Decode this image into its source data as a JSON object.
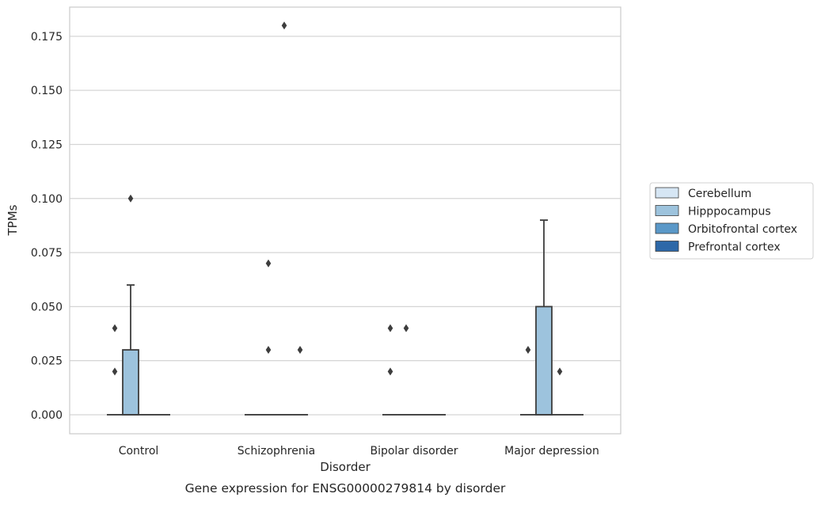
{
  "chart_data": {
    "type": "box",
    "title": "",
    "caption": "Gene expression for ENSG00000279814 by disorder",
    "xlabel": "Disorder",
    "ylabel": "TPMs",
    "ylim": [
      -0.0088,
      0.1885
    ],
    "y_ticks": [
      "0.000",
      "0.025",
      "0.050",
      "0.075",
      "0.100",
      "0.125",
      "0.150",
      "0.175"
    ],
    "grid": "horizontal",
    "legend_position": "right",
    "categories": [
      "Control",
      "Schizophrenia",
      "Bipolar disorder",
      "Major depression"
    ],
    "series": [
      {
        "name": "Cerebellum",
        "color": "#d6e6f4"
      },
      {
        "name": "Hipppocampus",
        "color": "#9dc3dd"
      },
      {
        "name": "Orbitofrontal cortex",
        "color": "#5a98c8"
      },
      {
        "name": "Prefrontal cortex",
        "color": "#2d68a8"
      }
    ],
    "boxes": [
      {
        "category": 0,
        "series": 0,
        "q1": 0,
        "median": 0,
        "q3": 0,
        "whisker_low": 0,
        "whisker_high": 0,
        "outliers": [
          0.02,
          0.04
        ]
      },
      {
        "category": 0,
        "series": 1,
        "q1": 0,
        "median": 0,
        "q3": 0.03,
        "whisker_low": 0,
        "whisker_high": 0.06,
        "outliers": [
          0.1
        ]
      },
      {
        "category": 0,
        "series": 2,
        "q1": 0,
        "median": 0,
        "q3": 0,
        "whisker_low": 0,
        "whisker_high": 0,
        "outliers": []
      },
      {
        "category": 0,
        "series": 3,
        "q1": 0,
        "median": 0,
        "q3": 0,
        "whisker_low": 0,
        "whisker_high": 0,
        "outliers": []
      },
      {
        "category": 1,
        "series": 0,
        "q1": 0,
        "median": 0,
        "q3": 0,
        "whisker_low": 0,
        "whisker_high": 0,
        "outliers": []
      },
      {
        "category": 1,
        "series": 1,
        "q1": 0,
        "median": 0,
        "q3": 0,
        "whisker_low": 0,
        "whisker_high": 0,
        "outliers": [
          0.03,
          0.07
        ]
      },
      {
        "category": 1,
        "series": 2,
        "q1": 0,
        "median": 0,
        "q3": 0,
        "whisker_low": 0,
        "whisker_high": 0,
        "outliers": [
          0.18
        ]
      },
      {
        "category": 1,
        "series": 3,
        "q1": 0,
        "median": 0,
        "q3": 0,
        "whisker_low": 0,
        "whisker_high": 0,
        "outliers": [
          0.03
        ]
      },
      {
        "category": 2,
        "series": 0,
        "q1": 0,
        "median": 0,
        "q3": 0,
        "whisker_low": 0,
        "whisker_high": 0,
        "outliers": [
          0.02,
          0.04
        ]
      },
      {
        "category": 2,
        "series": 1,
        "q1": 0,
        "median": 0,
        "q3": 0,
        "whisker_low": 0,
        "whisker_high": 0,
        "outliers": [
          0.04
        ]
      },
      {
        "category": 2,
        "series": 2,
        "q1": 0,
        "median": 0,
        "q3": 0,
        "whisker_low": 0,
        "whisker_high": 0,
        "outliers": []
      },
      {
        "category": 2,
        "series": 3,
        "q1": 0,
        "median": 0,
        "q3": 0,
        "whisker_low": 0,
        "whisker_high": 0,
        "outliers": []
      },
      {
        "category": 3,
        "series": 0,
        "q1": 0,
        "median": 0,
        "q3": 0,
        "whisker_low": 0,
        "whisker_high": 0,
        "outliers": [
          0.03
        ]
      },
      {
        "category": 3,
        "series": 1,
        "q1": 0,
        "median": 0,
        "q3": 0.05,
        "whisker_low": 0,
        "whisker_high": 0.09,
        "outliers": []
      },
      {
        "category": 3,
        "series": 2,
        "q1": 0,
        "median": 0,
        "q3": 0,
        "whisker_low": 0,
        "whisker_high": 0,
        "outliers": [
          0.02
        ]
      },
      {
        "category": 3,
        "series": 3,
        "q1": 0,
        "median": 0,
        "q3": 0,
        "whisker_low": 0,
        "whisker_high": 0,
        "outliers": []
      }
    ]
  }
}
